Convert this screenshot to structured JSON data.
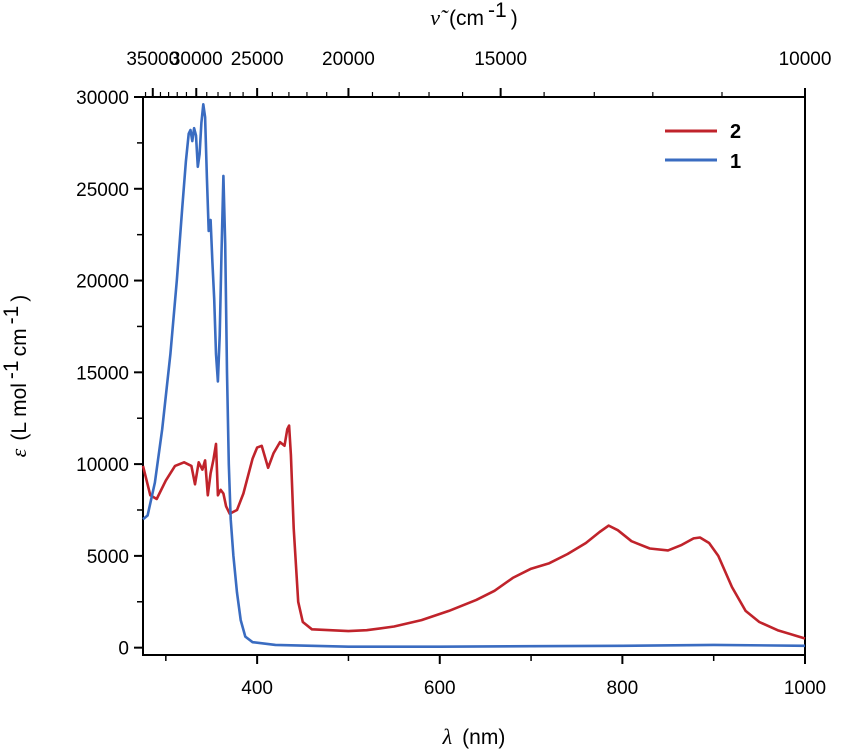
{
  "chart_data": {
    "type": "line",
    "xlabel": {
      "symbol": "λ",
      "unit": "(nm)"
    },
    "ylabel": {
      "symbol": "ε",
      "unit_pre": "(L mol",
      "exp1": "-1",
      "unit_mid": " cm",
      "exp2": "-1",
      "unit_post": ")"
    },
    "top_xlabel": {
      "symbol": "ν̃",
      "unit_pre": "(cm",
      "exp": "-1",
      "unit_post": ")"
    },
    "xlim": [
      275,
      1000
    ],
    "ylim": [
      -400,
      30000
    ],
    "x_ticks": [
      400,
      600,
      800,
      1000
    ],
    "y_ticks": [
      0,
      5000,
      10000,
      15000,
      20000,
      25000,
      30000
    ],
    "top_ticks": [
      35000,
      30000,
      25000,
      20000,
      15000,
      10000
    ],
    "x_tick_labels": [
      "400",
      "600",
      "800",
      "1000"
    ],
    "y_tick_labels": [
      "0",
      "5000",
      "10000",
      "15000",
      "20000",
      "25000",
      "30000"
    ],
    "top_tick_labels": [
      "35000",
      "30000",
      "25000",
      "20000",
      "15000",
      "10000"
    ],
    "legend_position": "top-right",
    "series": [
      {
        "name": "2",
        "color": "#c0232b",
        "points": [
          [
            275,
            9900
          ],
          [
            283,
            8300
          ],
          [
            290,
            8100
          ],
          [
            300,
            9100
          ],
          [
            310,
            9900
          ],
          [
            320,
            10100
          ],
          [
            328,
            9900
          ],
          [
            332,
            8900
          ],
          [
            336,
            10100
          ],
          [
            340,
            9700
          ],
          [
            343,
            10200
          ],
          [
            346,
            8300
          ],
          [
            349,
            9500
          ],
          [
            352,
            10200
          ],
          [
            355,
            11100
          ],
          [
            357,
            8300
          ],
          [
            360,
            8600
          ],
          [
            363,
            8400
          ],
          [
            366,
            7700
          ],
          [
            370,
            7300
          ],
          [
            378,
            7500
          ],
          [
            385,
            8400
          ],
          [
            395,
            10300
          ],
          [
            400,
            10900
          ],
          [
            405,
            11000
          ],
          [
            412,
            9800
          ],
          [
            418,
            10600
          ],
          [
            425,
            11200
          ],
          [
            430,
            11000
          ],
          [
            433,
            11900
          ],
          [
            435,
            12100
          ],
          [
            437,
            10500
          ],
          [
            440,
            6500
          ],
          [
            445,
            2500
          ],
          [
            450,
            1400
          ],
          [
            460,
            1000
          ],
          [
            480,
            950
          ],
          [
            500,
            900
          ],
          [
            520,
            950
          ],
          [
            550,
            1150
          ],
          [
            580,
            1500
          ],
          [
            610,
            2000
          ],
          [
            640,
            2600
          ],
          [
            660,
            3100
          ],
          [
            680,
            3800
          ],
          [
            700,
            4300
          ],
          [
            720,
            4600
          ],
          [
            740,
            5100
          ],
          [
            760,
            5700
          ],
          [
            775,
            6300
          ],
          [
            785,
            6650
          ],
          [
            795,
            6400
          ],
          [
            810,
            5800
          ],
          [
            830,
            5400
          ],
          [
            850,
            5300
          ],
          [
            865,
            5600
          ],
          [
            878,
            5950
          ],
          [
            885,
            6000
          ],
          [
            895,
            5700
          ],
          [
            905,
            5000
          ],
          [
            920,
            3300
          ],
          [
            935,
            2000
          ],
          [
            950,
            1400
          ],
          [
            970,
            950
          ],
          [
            990,
            650
          ],
          [
            1000,
            500
          ]
        ]
      },
      {
        "name": "1",
        "color": "#3a6cc1",
        "points": [
          [
            275,
            7000
          ],
          [
            280,
            7200
          ],
          [
            288,
            9000
          ],
          [
            296,
            11900
          ],
          [
            305,
            16000
          ],
          [
            312,
            20000
          ],
          [
            318,
            24000
          ],
          [
            322,
            26500
          ],
          [
            325,
            28000
          ],
          [
            327,
            28200
          ],
          [
            329,
            27600
          ],
          [
            331,
            28300
          ],
          [
            333,
            27900
          ],
          [
            335,
            26200
          ],
          [
            337,
            26900
          ],
          [
            339,
            28600
          ],
          [
            341,
            29600
          ],
          [
            343,
            28900
          ],
          [
            345,
            25600
          ],
          [
            347,
            22700
          ],
          [
            349,
            23300
          ],
          [
            351,
            21000
          ],
          [
            353,
            19000
          ],
          [
            355,
            16000
          ],
          [
            357,
            14500
          ],
          [
            359,
            17000
          ],
          [
            361,
            21500
          ],
          [
            363,
            25700
          ],
          [
            365,
            22000
          ],
          [
            367,
            15000
          ],
          [
            369,
            10000
          ],
          [
            371,
            7000
          ],
          [
            374,
            5000
          ],
          [
            378,
            3000
          ],
          [
            382,
            1500
          ],
          [
            387,
            600
          ],
          [
            395,
            300
          ],
          [
            420,
            150
          ],
          [
            500,
            50
          ],
          [
            600,
            50
          ],
          [
            700,
            80
          ],
          [
            800,
            100
          ],
          [
            900,
            150
          ],
          [
            1000,
            100
          ]
        ]
      }
    ]
  }
}
